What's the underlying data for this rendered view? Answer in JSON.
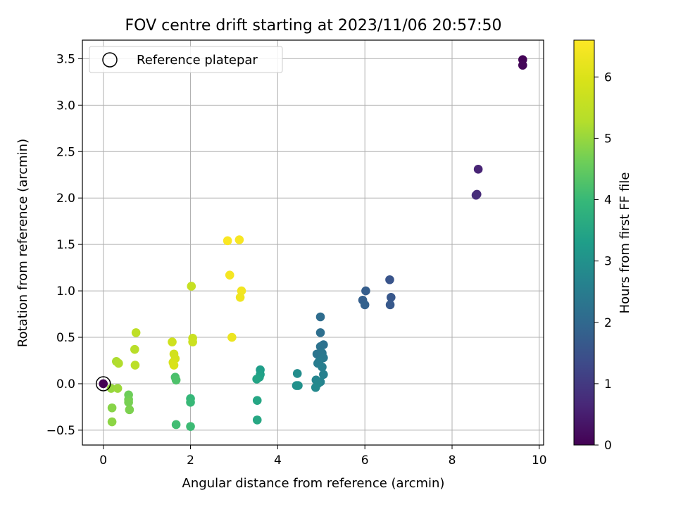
{
  "chart_data": {
    "type": "scatter",
    "title": "FOV centre drift starting at 2023/11/06 20:57:50",
    "xlabel": "Angular distance from reference (arcmin)",
    "ylabel": "Rotation from reference (arcmin)",
    "xlim": [
      -0.48,
      10.1
    ],
    "ylim": [
      -0.66,
      3.7
    ],
    "xticks": [
      0,
      2,
      4,
      6,
      8,
      10
    ],
    "yticks": [
      -0.5,
      0.0,
      0.5,
      1.0,
      1.5,
      2.0,
      2.5,
      3.0,
      3.5
    ],
    "xtick_labels": [
      "0",
      "2",
      "4",
      "6",
      "8",
      "10"
    ],
    "ytick_labels": [
      "−0.5",
      "0.0",
      "0.5",
      "1.0",
      "1.5",
      "2.0",
      "2.5",
      "3.0",
      "3.5"
    ],
    "grid": true,
    "legend": {
      "placement": "top-left",
      "entries": [
        "Reference platepar"
      ]
    },
    "reference_point": {
      "x": 0,
      "y": 0
    },
    "colorbar": {
      "label": "Hours from first FF file",
      "colormap": "viridis",
      "range": [
        0,
        6.6
      ],
      "ticks": [
        0,
        1,
        2,
        3,
        4,
        5,
        6
      ],
      "tick_labels": [
        "0",
        "1",
        "2",
        "3",
        "4",
        "5",
        "6"
      ]
    },
    "points": [
      {
        "x": 9.62,
        "y": 3.49,
        "c": 0.05
      },
      {
        "x": 9.62,
        "y": 3.43,
        "c": 0.1
      },
      {
        "x": 8.6,
        "y": 2.31,
        "c": 0.6
      },
      {
        "x": 8.57,
        "y": 2.04,
        "c": 0.7
      },
      {
        "x": 8.55,
        "y": 2.03,
        "c": 0.75
      },
      {
        "x": 6.57,
        "y": 1.12,
        "c": 1.55
      },
      {
        "x": 6.6,
        "y": 0.93,
        "c": 1.6
      },
      {
        "x": 6.58,
        "y": 0.85,
        "c": 1.65
      },
      {
        "x": 6.02,
        "y": 1.0,
        "c": 1.75
      },
      {
        "x": 5.95,
        "y": 0.9,
        "c": 1.8
      },
      {
        "x": 6.0,
        "y": 0.85,
        "c": 1.85
      },
      {
        "x": 4.98,
        "y": 0.72,
        "c": 2.1
      },
      {
        "x": 4.98,
        "y": 0.55,
        "c": 2.15
      },
      {
        "x": 5.05,
        "y": 0.42,
        "c": 2.2
      },
      {
        "x": 4.98,
        "y": 0.4,
        "c": 2.25
      },
      {
        "x": 4.9,
        "y": 0.32,
        "c": 2.3
      },
      {
        "x": 5.02,
        "y": 0.33,
        "c": 2.35
      },
      {
        "x": 5.05,
        "y": 0.28,
        "c": 2.4
      },
      {
        "x": 4.95,
        "y": 0.24,
        "c": 2.45
      },
      {
        "x": 4.92,
        "y": 0.22,
        "c": 2.5
      },
      {
        "x": 5.02,
        "y": 0.18,
        "c": 2.55
      },
      {
        "x": 5.05,
        "y": 0.1,
        "c": 2.6
      },
      {
        "x": 4.98,
        "y": 0.02,
        "c": 2.65
      },
      {
        "x": 4.88,
        "y": 0.04,
        "c": 2.7
      },
      {
        "x": 4.92,
        "y": 0.0,
        "c": 2.75
      },
      {
        "x": 4.87,
        "y": -0.04,
        "c": 2.8
      },
      {
        "x": 4.45,
        "y": 0.11,
        "c": 2.9
      },
      {
        "x": 4.43,
        "y": -0.02,
        "c": 2.95
      },
      {
        "x": 4.47,
        "y": -0.02,
        "c": 3.0
      },
      {
        "x": 3.6,
        "y": 0.15,
        "c": 3.3
      },
      {
        "x": 3.6,
        "y": 0.1,
        "c": 3.35
      },
      {
        "x": 3.58,
        "y": 0.07,
        "c": 3.4
      },
      {
        "x": 3.52,
        "y": 0.05,
        "c": 3.45
      },
      {
        "x": 3.53,
        "y": -0.18,
        "c": 3.5
      },
      {
        "x": 3.53,
        "y": -0.39,
        "c": 3.55
      },
      {
        "x": 2.0,
        "y": -0.16,
        "c": 3.95
      },
      {
        "x": 2.0,
        "y": -0.2,
        "c": 4.0
      },
      {
        "x": 2.0,
        "y": -0.46,
        "c": 4.05
      },
      {
        "x": 1.67,
        "y": -0.44,
        "c": 4.1
      },
      {
        "x": 1.65,
        "y": 0.07,
        "c": 4.2
      },
      {
        "x": 1.67,
        "y": 0.04,
        "c": 4.25
      },
      {
        "x": 0.58,
        "y": -0.12,
        "c": 4.6
      },
      {
        "x": 0.58,
        "y": -0.17,
        "c": 4.65
      },
      {
        "x": 0.58,
        "y": -0.2,
        "c": 4.7
      },
      {
        "x": 0.6,
        "y": -0.28,
        "c": 4.75
      },
      {
        "x": 0.2,
        "y": -0.26,
        "c": 4.85
      },
      {
        "x": 0.2,
        "y": -0.41,
        "c": 4.9
      },
      {
        "x": 0.18,
        "y": -0.05,
        "c": 5.0
      },
      {
        "x": 0.33,
        "y": -0.05,
        "c": 5.05
      },
      {
        "x": 0.3,
        "y": 0.24,
        "c": 5.2
      },
      {
        "x": 0.35,
        "y": 0.22,
        "c": 5.25
      },
      {
        "x": 0.72,
        "y": 0.37,
        "c": 5.35
      },
      {
        "x": 0.73,
        "y": 0.2,
        "c": 5.4
      },
      {
        "x": 0.75,
        "y": 0.55,
        "c": 5.45
      },
      {
        "x": 2.02,
        "y": 1.05,
        "c": 5.6
      },
      {
        "x": 2.05,
        "y": 0.49,
        "c": 5.65
      },
      {
        "x": 2.05,
        "y": 0.45,
        "c": 5.7
      },
      {
        "x": 1.58,
        "y": 0.45,
        "c": 5.75
      },
      {
        "x": 1.62,
        "y": 0.32,
        "c": 5.8
      },
      {
        "x": 1.65,
        "y": 0.27,
        "c": 5.85
      },
      {
        "x": 1.6,
        "y": 0.23,
        "c": 5.9
      },
      {
        "x": 1.62,
        "y": 0.2,
        "c": 5.95
      },
      {
        "x": 2.85,
        "y": 1.54,
        "c": 6.55
      },
      {
        "x": 3.12,
        "y": 1.55,
        "c": 6.5
      },
      {
        "x": 2.9,
        "y": 1.17,
        "c": 6.45
      },
      {
        "x": 3.17,
        "y": 1.0,
        "c": 6.4
      },
      {
        "x": 3.14,
        "y": 0.93,
        "c": 6.35
      },
      {
        "x": 2.95,
        "y": 0.5,
        "c": 6.3
      },
      {
        "x": 0.0,
        "y": 0.0,
        "c": 0.0
      }
    ]
  }
}
